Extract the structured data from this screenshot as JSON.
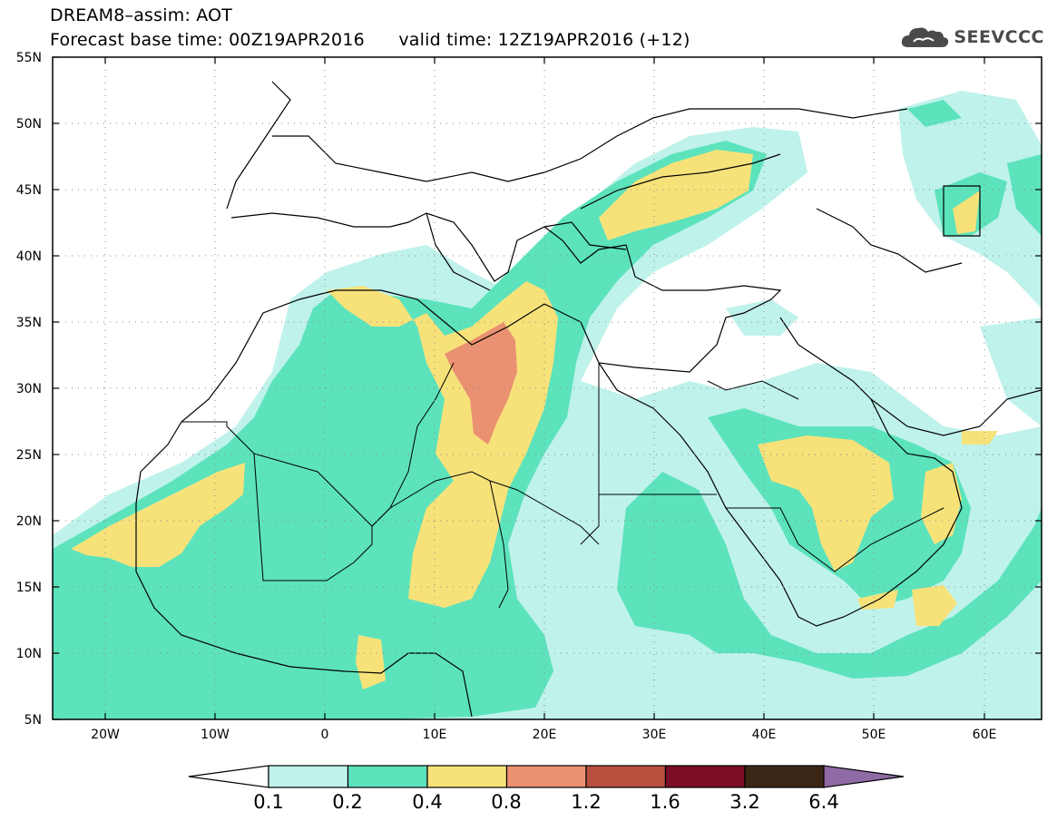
{
  "title": {
    "line1": "DREAM8–assim: AOT",
    "line2": "Forecast base time: 00Z19APR2016      valid time: 12Z19APR2016 (+12)"
  },
  "logo": {
    "text": "SEEVCCC",
    "icon": "cloud-logo-icon",
    "color": "#4a4a4a"
  },
  "map": {
    "lat_labels": [
      "55N",
      "50N",
      "45N",
      "40N",
      "35N",
      "30N",
      "25N",
      "20N",
      "15N",
      "10N",
      "5N"
    ],
    "lon_labels": [
      "20W",
      "10W",
      "0",
      "10E",
      "20E",
      "30E",
      "40E",
      "50E",
      "60E"
    ]
  },
  "colorbar": {
    "labels": [
      "0.1",
      "0.2",
      "0.4",
      "0.8",
      "1.2",
      "1.6",
      "3.2",
      "6.4"
    ],
    "colors": [
      "#ffffff",
      "#bff2ea",
      "#5ce3bc",
      "#f7e27a",
      "#ea9171",
      "#b84f3f",
      "#7b0d26",
      "#3c2716",
      "#8f6ba5"
    ]
  }
}
